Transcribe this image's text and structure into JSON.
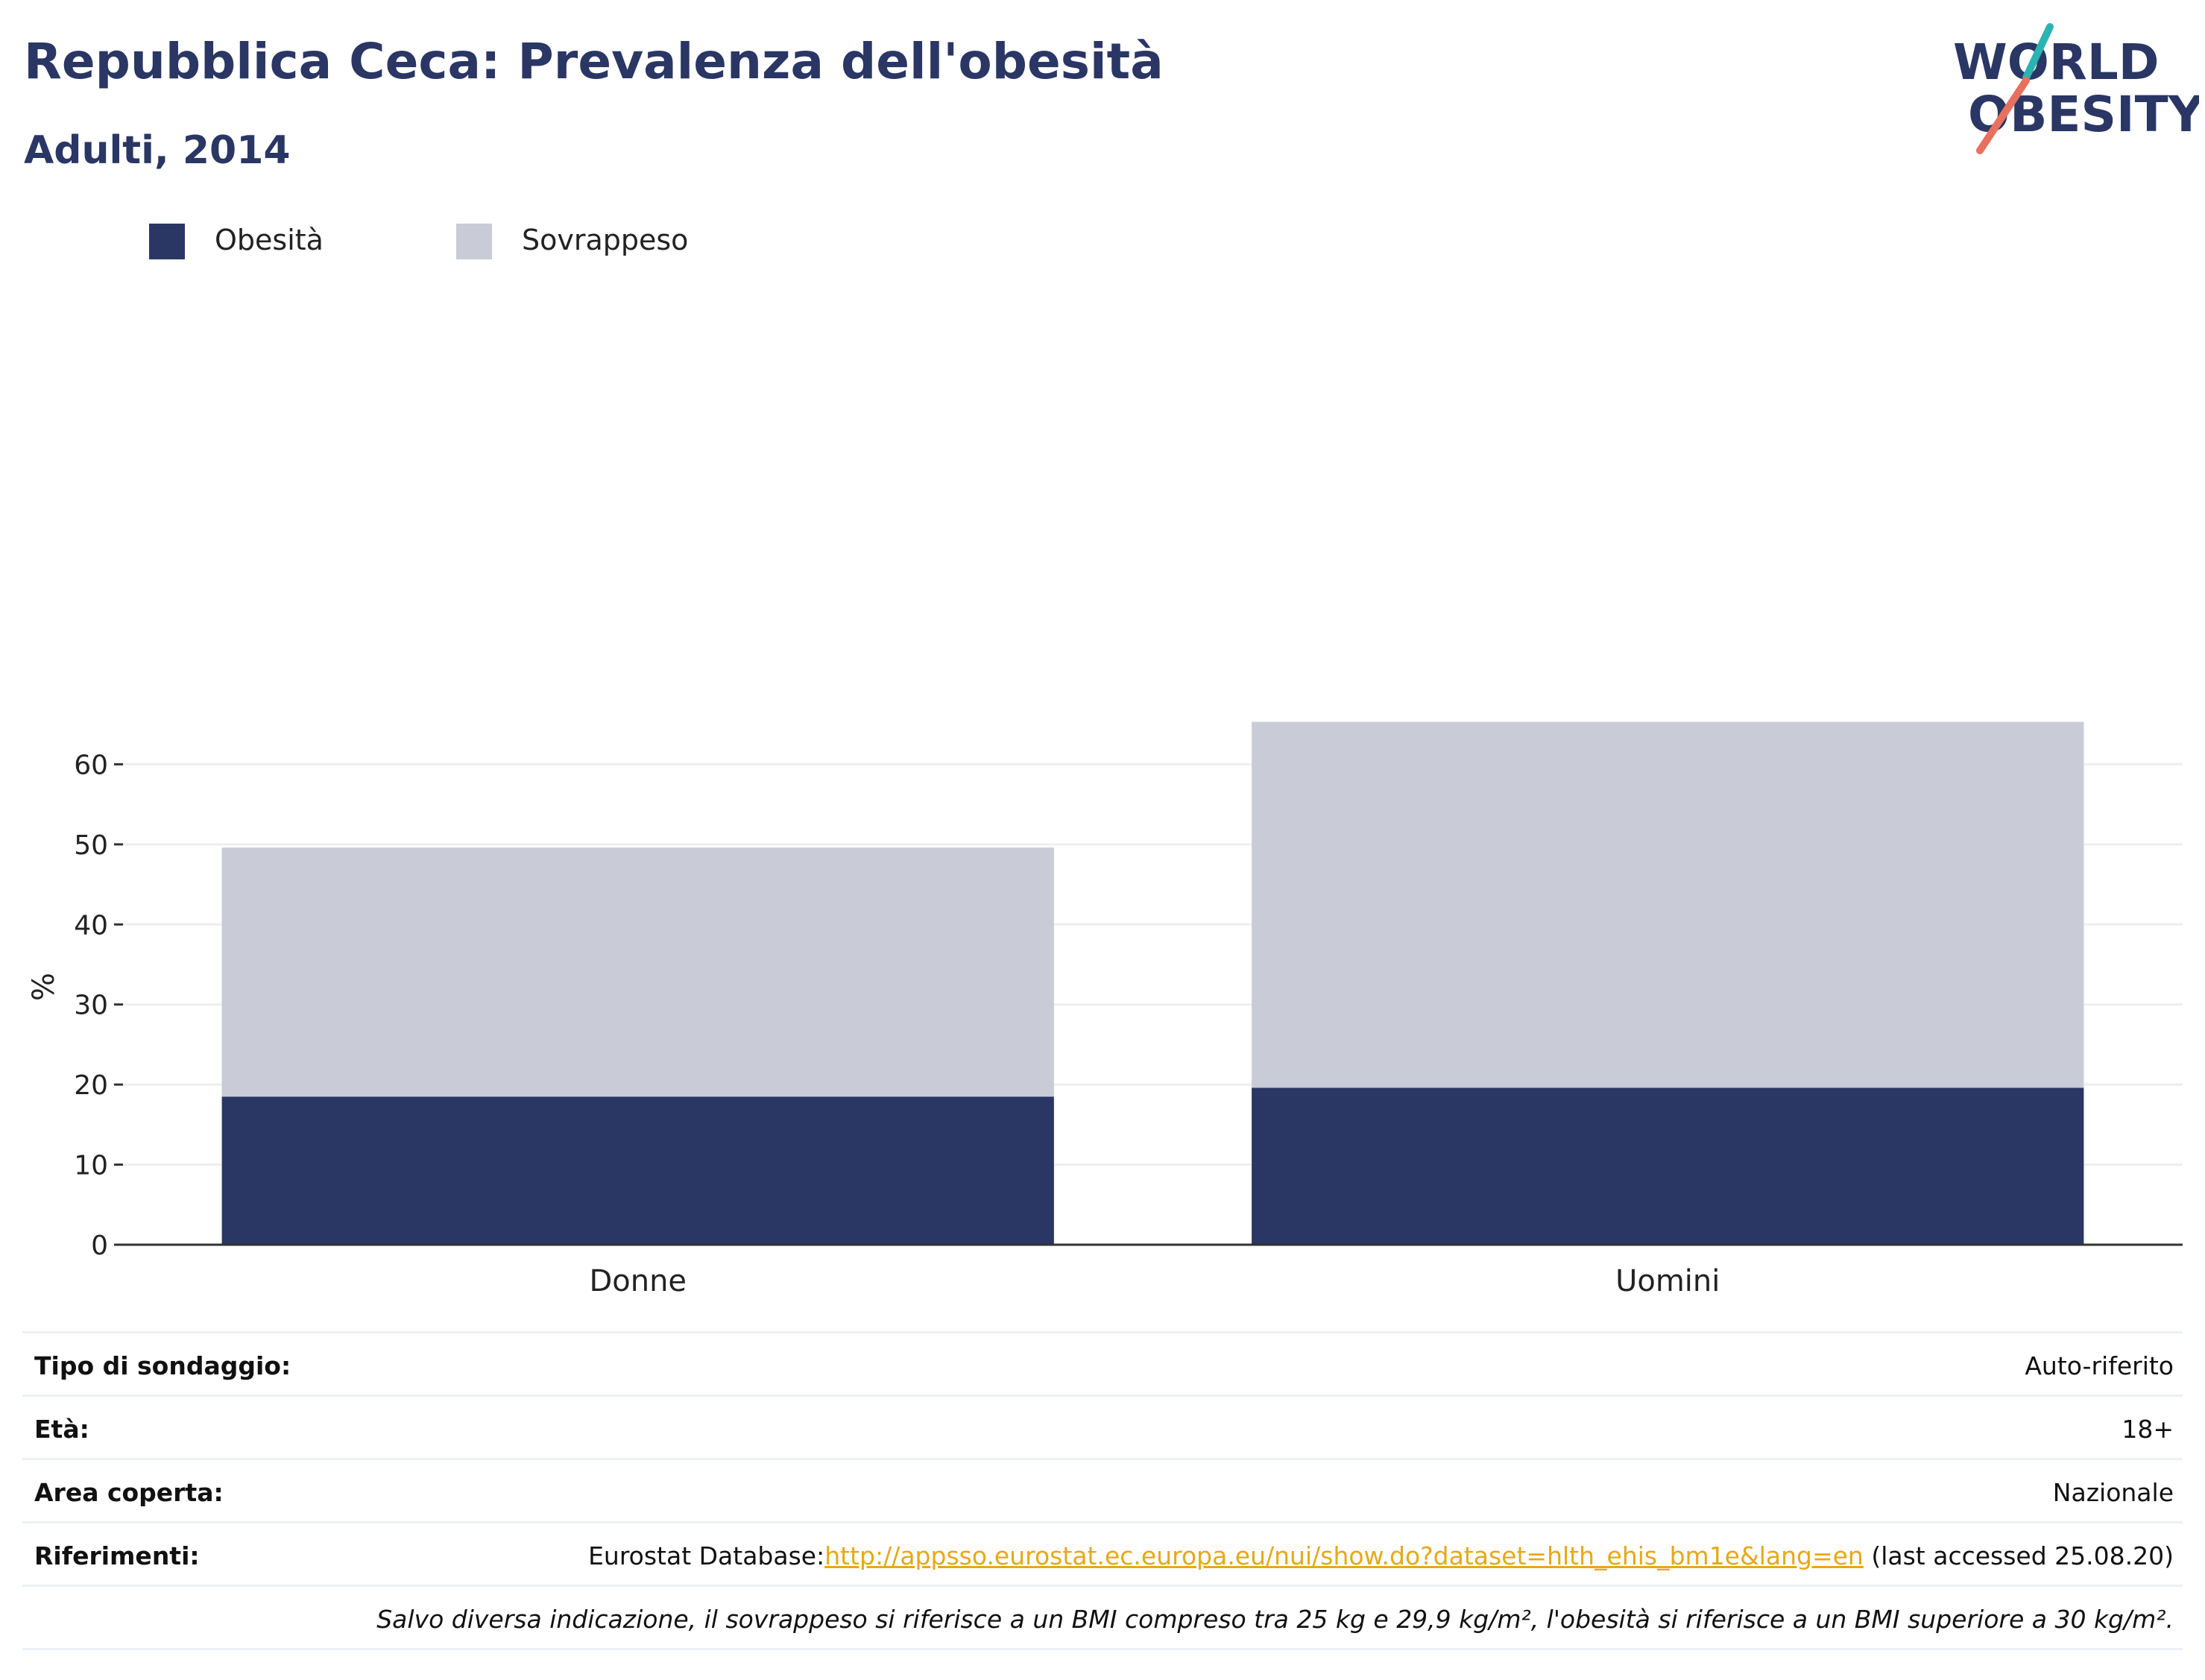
{
  "header": {
    "title": "Repubblica Ceca: Prevalenza dell'obesità",
    "subtitle": "Adulti, 2014"
  },
  "logo": {
    "line1": "WORLD",
    "line2": "OBESITY",
    "colors": {
      "text": "#2a3664",
      "slash_top": "#2bb3b1",
      "slash_bottom": "#e8705e"
    }
  },
  "legend": [
    {
      "label": "Obesità",
      "color": "#2a3664"
    },
    {
      "label": "Sovrappeso",
      "color": "#c9cbd7"
    }
  ],
  "chart_data": {
    "type": "bar",
    "stacked": true,
    "categories": [
      "Donne",
      "Uomini"
    ],
    "series": [
      {
        "name": "Obesità",
        "values": [
          18.5,
          19.6
        ],
        "color": "#2a3664"
      },
      {
        "name": "Sovrappeso",
        "values": [
          31.1,
          45.7
        ],
        "color": "#c9cbd7"
      }
    ],
    "ylabel": "%",
    "ylim": [
      0,
      70
    ],
    "yticks": [
      0,
      10,
      20,
      30,
      40,
      50,
      60
    ],
    "grid": true,
    "legend_position": "top-left"
  },
  "info": {
    "survey_type": {
      "label": "Tipo di sondaggio:",
      "value": "Auto-riferito"
    },
    "age": {
      "label": "Età:",
      "value": "18+"
    },
    "area": {
      "label": "Area coperta:",
      "value": "Nazionale"
    },
    "references": {
      "label": "Riferimenti:",
      "prefix": "Eurostat Database:",
      "link": "http://appsso.eurostat.ec.europa.eu/nui/show.do?dataset=hlth_ehis_bm1e&lang=en",
      "suffix": " (last accessed 25.08.20)"
    },
    "note": "Salvo diversa indicazione, il sovrappeso si riferisce a un BMI compreso tra 25 kg e 29,9 kg/m², l'obesità si riferisce a un BMI superiore a 30 kg/m²."
  }
}
